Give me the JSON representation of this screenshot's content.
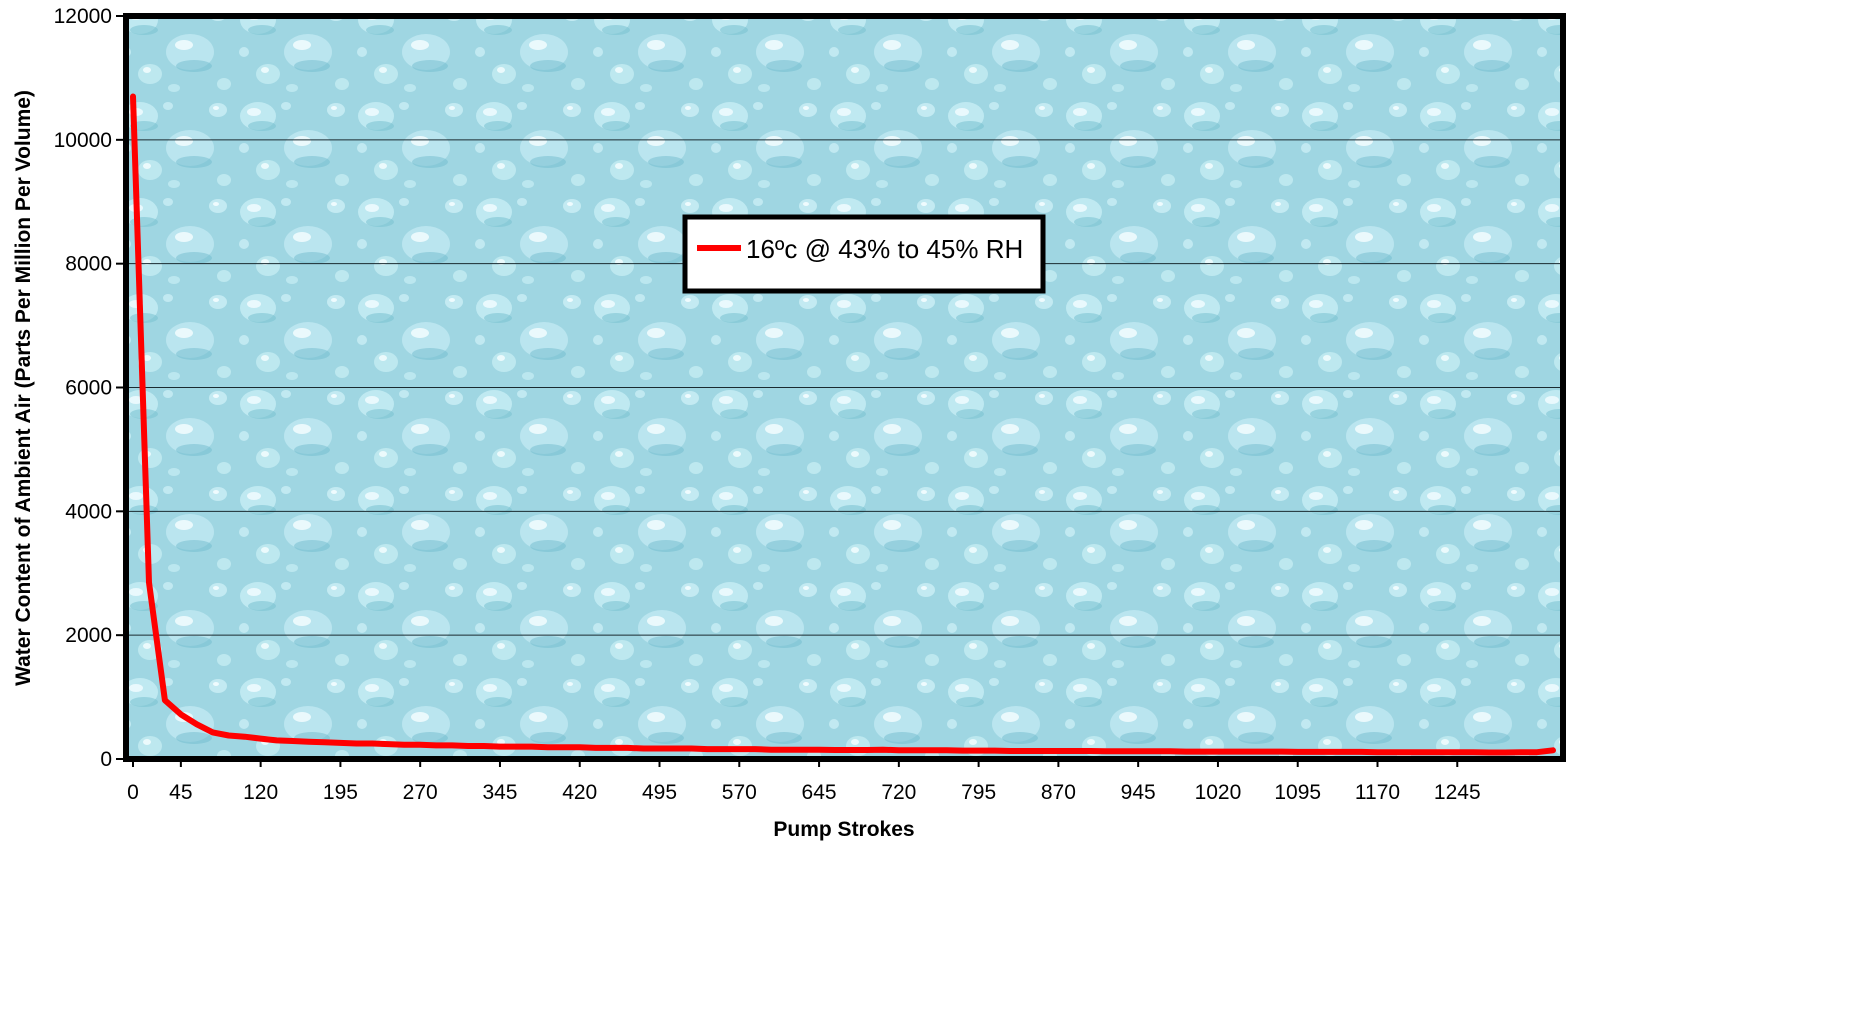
{
  "chart_data": {
    "type": "line",
    "title": "",
    "xlabel": "Pump Strokes",
    "ylabel": "Water Content of Ambient Air (Parts Per Million Per Volume)",
    "xlim": [
      0,
      1335
    ],
    "ylim": [
      0,
      12000
    ],
    "x_ticks": [
      0,
      45,
      120,
      195,
      270,
      345,
      420,
      495,
      570,
      645,
      720,
      795,
      870,
      945,
      1020,
      1095,
      1170,
      1245
    ],
    "y_ticks": [
      0,
      2000,
      4000,
      6000,
      8000,
      10000,
      12000
    ],
    "grid": true,
    "legend_position": "top-center",
    "colors": {
      "line": "#ff0000",
      "plot_background": "#9fd8e4",
      "frame": "#000000",
      "gridline": "#1a2a30"
    },
    "series": [
      {
        "name": "16ºc @ 43% to 45% RH",
        "x": [
          0,
          15,
          30,
          45,
          60,
          75,
          90,
          105,
          120,
          135,
          150,
          165,
          180,
          195,
          210,
          225,
          240,
          255,
          270,
          285,
          300,
          315,
          330,
          345,
          360,
          375,
          390,
          405,
          420,
          435,
          450,
          465,
          480,
          495,
          510,
          525,
          540,
          555,
          570,
          585,
          600,
          615,
          630,
          645,
          660,
          675,
          690,
          705,
          720,
          735,
          750,
          765,
          780,
          795,
          810,
          825,
          840,
          855,
          870,
          885,
          900,
          915,
          930,
          945,
          960,
          975,
          990,
          1005,
          1020,
          1035,
          1050,
          1065,
          1080,
          1095,
          1110,
          1125,
          1140,
          1155,
          1170,
          1185,
          1200,
          1215,
          1230,
          1245,
          1260,
          1275,
          1290,
          1305,
          1320,
          1335
        ],
        "values": [
          10700,
          2850,
          950,
          720,
          560,
          430,
          380,
          360,
          330,
          300,
          290,
          280,
          270,
          260,
          250,
          250,
          240,
          230,
          230,
          220,
          220,
          210,
          210,
          200,
          200,
          200,
          190,
          190,
          190,
          180,
          180,
          180,
          170,
          170,
          170,
          170,
          160,
          160,
          160,
          160,
          150,
          150,
          150,
          150,
          145,
          145,
          145,
          150,
          140,
          140,
          140,
          140,
          135,
          135,
          135,
          130,
          130,
          130,
          130,
          130,
          130,
          125,
          125,
          125,
          125,
          125,
          120,
          120,
          120,
          120,
          120,
          120,
          120,
          115,
          115,
          115,
          115,
          115,
          110,
          110,
          110,
          110,
          110,
          110,
          110,
          105,
          105,
          110,
          110,
          140
        ]
      }
    ]
  }
}
